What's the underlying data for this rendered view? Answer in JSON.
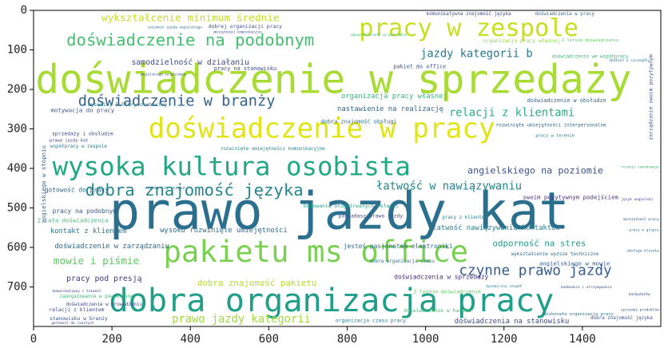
{
  "chart_data": {
    "type": "wordcloud",
    "title": "",
    "xlabel": "",
    "ylabel": "",
    "xlim": [
      0,
      1600
    ],
    "ylim": [
      800,
      0
    ],
    "grid": false,
    "x_ticks": [
      0,
      200,
      400,
      600,
      800,
      1000,
      1200,
      1400
    ],
    "y_ticks": [
      0,
      100,
      200,
      300,
      400,
      500,
      600,
      700
    ],
    "words": [
      {
        "text": "prawo jazdy kat",
        "x": 780,
        "y": 510,
        "size": 130,
        "color": "#2a6f8e"
      },
      {
        "text": "doświadczenie w sprzedaży",
        "x": 765,
        "y": 175,
        "size": 112,
        "color": "#a8db34"
      },
      {
        "text": "dobra organizacja pracy",
        "x": 760,
        "y": 735,
        "size": 82,
        "color": "#1f9e89"
      },
      {
        "text": "pakietu ms office",
        "x": 720,
        "y": 610,
        "size": 76,
        "color": "#7ad151"
      },
      {
        "text": "doświadczenie w pracy",
        "x": 735,
        "y": 300,
        "size": 70,
        "color": "#e2e41a"
      },
      {
        "text": "wysoka kultura osobista",
        "x": 505,
        "y": 395,
        "size": 66,
        "color": "#22a884"
      },
      {
        "text": "pracy w zespole",
        "x": 1110,
        "y": 45,
        "size": 62,
        "color": "#c5e021"
      },
      {
        "text": "doświadczenie na podobnym",
        "x": 400,
        "y": 75,
        "size": 42,
        "color": "#44bf70"
      },
      {
        "text": "dobra znajomość języka",
        "x": 410,
        "y": 455,
        "size": 42,
        "color": "#25858e"
      },
      {
        "text": "doświadczenie w branży",
        "x": 365,
        "y": 230,
        "size": 38,
        "color": "#33638d"
      },
      {
        "text": "czynne prawo jazdy",
        "x": 1280,
        "y": 660,
        "size": 36,
        "color": "#365c8d"
      },
      {
        "text": "relacji z klientami",
        "x": 1220,
        "y": 260,
        "size": 28,
        "color": "#29af7f"
      },
      {
        "text": "jazdy kategorii b",
        "x": 1130,
        "y": 110,
        "size": 28,
        "color": "#2a788e"
      },
      {
        "text": "łatwość w nawiązywaniu",
        "x": 1060,
        "y": 445,
        "size": 28,
        "color": "#26828e"
      },
      {
        "text": "prawo jazdy kategorii",
        "x": 530,
        "y": 785,
        "size": 28,
        "color": "#a0da39"
      },
      {
        "text": "wykształcenie minimum średnie",
        "x": 400,
        "y": 20,
        "size": 26,
        "color": "#c0df25"
      },
      {
        "text": "mowie i piśmie",
        "x": 160,
        "y": 635,
        "size": 26,
        "color": "#5ec962"
      },
      {
        "text": "angielskiego na poziomie",
        "x": 1280,
        "y": 405,
        "size": 24,
        "color": "#3b528b"
      },
      {
        "text": "odporność na stres",
        "x": 1290,
        "y": 590,
        "size": 22,
        "color": "#1f9a8a"
      },
      {
        "text": "dobra znajomość pakietu",
        "x": 570,
        "y": 690,
        "size": 22,
        "color": "#b5de2b"
      },
      {
        "text": "pracy pod presją",
        "x": 180,
        "y": 680,
        "size": 20,
        "color": "#443983"
      },
      {
        "text": "samodzielność w działaniu",
        "x": 400,
        "y": 132,
        "size": 20,
        "color": "#3e4989"
      },
      {
        "text": "organizacja pracy własnej",
        "x": 920,
        "y": 218,
        "size": 18,
        "color": "#35b779"
      },
      {
        "text": "nastawienie na realizację",
        "x": 910,
        "y": 250,
        "size": 18,
        "color": "#33638d"
      },
      {
        "text": "kontakt z klientem",
        "x": 140,
        "y": 560,
        "size": 18,
        "color": "#2c728e"
      },
      {
        "text": "doświadczenie w zarządzaniu",
        "x": 200,
        "y": 598,
        "size": 18,
        "color": "#31688e"
      },
      {
        "text": "łatwość nawiązywania kontaktów",
        "x": 1180,
        "y": 552,
        "size": 18,
        "color": "#287d8e"
      },
      {
        "text": "wysoko rozwinięte umiejętności",
        "x": 485,
        "y": 558,
        "size": 18,
        "color": "#2e6e8e"
      },
      {
        "text": "jesteś pasjonatem elektroniki",
        "x": 930,
        "y": 597,
        "size": 16,
        "color": "#2f6c8e"
      },
      {
        "text": "doświadczenia w sprzedaży",
        "x": 1040,
        "y": 675,
        "size": 16,
        "color": "#472d7b"
      },
      {
        "text": "doświadczenia na stanowisku",
        "x": 1220,
        "y": 795,
        "size": 18,
        "color": "#3f4889"
      },
      {
        "text": "gotowość do pracy",
        "x": 110,
        "y": 455,
        "size": 16,
        "color": "#2f6b8e"
      },
      {
        "text": "pracy na podobnym",
        "x": 130,
        "y": 508,
        "size": 16,
        "color": "#39568c"
      },
      {
        "text": "2 lata doświadczenia",
        "x": 100,
        "y": 531,
        "size": 15,
        "color": "#3aba76"
      },
      {
        "text": "motywacja do pracy",
        "x": 125,
        "y": 253,
        "size": 15,
        "color": "#3b528b"
      },
      {
        "text": "angielskiego w stopniu",
        "x": 25,
        "y": 440,
        "size": 15,
        "color": "#33638d",
        "rotate": -90
      },
      {
        "text": "dobra znajomość obsługi",
        "x": 830,
        "y": 282,
        "size": 14,
        "color": "#2c728e"
      },
      {
        "text": "dobrej organizacji pracy",
        "x": 540,
        "y": 40,
        "size": 13,
        "color": "#3e4989"
      },
      {
        "text": "organizacja pracy własnej",
        "x": 1245,
        "y": 77,
        "size": 13,
        "color": "#8fd744"
      },
      {
        "text": "pracy na stanowisku",
        "x": 540,
        "y": 147,
        "size": 14,
        "color": "#3e4989"
      },
      {
        "text": "pakiet ms office",
        "x": 985,
        "y": 142,
        "size": 14,
        "color": "#3b528b"
      },
      {
        "text": "doświadczenie w obsłudze",
        "x": 1360,
        "y": 228,
        "size": 14,
        "color": "#33638d"
      },
      {
        "text": "komunikatywna znajomość języka",
        "x": 1110,
        "y": 10,
        "size": 12,
        "color": "#3e4989"
      },
      {
        "text": "doświadczenia w pracy",
        "x": 1355,
        "y": 10,
        "size": 12,
        "color": "#31688e"
      },
      {
        "text": "doświadczenie we współpracy",
        "x": 1420,
        "y": 118,
        "size": 12,
        "color": "#3bbb75"
      },
      {
        "text": "wysokiej kultury osobistej",
        "x": 240,
        "y": 238,
        "size": 13,
        "color": "#26828e"
      },
      {
        "text": "sprzedaży i obsłudze",
        "x": 125,
        "y": 312,
        "size": 13,
        "color": "#3e4989"
      },
      {
        "text": "współpracy w zespole",
        "x": 115,
        "y": 345,
        "size": 12,
        "color": "#2a788e"
      },
      {
        "text": "rozwinięte umiejętności komunikacyjne",
        "x": 610,
        "y": 352,
        "size": 12,
        "color": "#25858e"
      },
      {
        "text": "budowania długotrwałych relacji",
        "x": 810,
        "y": 495,
        "size": 13,
        "color": "#1f9e89"
      },
      {
        "text": "posiadasz prawo jazdy",
        "x": 860,
        "y": 520,
        "size": 13,
        "color": "#433e85"
      },
      {
        "text": "swoim pozytywnym podejściem",
        "x": 1370,
        "y": 473,
        "size": 15,
        "color": "#472d7b"
      },
      {
        "text": "pracy z klientem",
        "x": 1100,
        "y": 525,
        "size": 12,
        "color": "#287d8e"
      },
      {
        "text": "angielskiego w mowie",
        "x": 1380,
        "y": 640,
        "size": 15,
        "color": "#365c8d"
      },
      {
        "text": "doświadczenie w prowadzeniu",
        "x": 180,
        "y": 745,
        "size": 12,
        "color": "#3e4989"
      },
      {
        "text": "relacji z klientem",
        "x": 110,
        "y": 758,
        "size": 13,
        "color": "#3e4989"
      },
      {
        "text": "stanowisku w branży",
        "x": 115,
        "y": 780,
        "size": 13,
        "color": "#3b528b"
      },
      {
        "text": "organizacja czasu pracy",
        "x": 860,
        "y": 785,
        "size": 13,
        "color": "#2a788e"
      },
      {
        "text": "doświadczenie w handlu",
        "x": 1030,
        "y": 760,
        "size": 13,
        "color": "#44bf70"
      },
      {
        "text": "2 letnie doświadczenie",
        "x": 1055,
        "y": 712,
        "size": 13,
        "color": "#5ec962"
      },
      {
        "text": "dobra organizacja czasu",
        "x": 940,
        "y": 636,
        "size": 12,
        "color": "#2c728e"
      },
      {
        "text": "wykształcenie wyższe techniczne",
        "x": 1330,
        "y": 618,
        "size": 12,
        "color": "#31688e"
      },
      {
        "text": "rozwinięte umiejętności interpersonalne",
        "x": 1320,
        "y": 292,
        "size": 12,
        "color": "#33638d"
      },
      {
        "text": "zaangażowanie w powierzone",
        "x": 160,
        "y": 725,
        "size": 12,
        "color": "#3aba76"
      },
      {
        "text": "dobra znajomość języka",
        "x": 1500,
        "y": 780,
        "size": 12,
        "color": "#3b528b"
      },
      {
        "text": "doskonała organizacja pracy",
        "x": 1390,
        "y": 770,
        "size": 11,
        "color": "#2c728e"
      },
      {
        "text": "2 letnie doświadczenie",
        "x": 1420,
        "y": 77,
        "size": 11,
        "color": "#5ec962"
      },
      {
        "text": "zarządzanie swoim pozytywnym",
        "x": 1575,
        "y": 220,
        "size": 13,
        "color": "#3b528b",
        "rotate": -90
      },
      {
        "text": "pracy w terenie",
        "x": 1330,
        "y": 318,
        "size": 11,
        "color": "#2a788e"
      },
      {
        "text": "prawa jazdy kat",
        "x": 90,
        "y": 330,
        "size": 11,
        "color": "#3e4989"
      },
      {
        "text": "odpowiedzialność za powierzone",
        "x": 880,
        "y": 62,
        "size": 8,
        "color": "#3bbb75"
      },
      {
        "text": "umiejętności komunikacyjne",
        "x": 520,
        "y": 55,
        "size": 8,
        "color": "#3e4989"
      },
      {
        "text": "znajomość języka angielskiego",
        "x": 360,
        "y": 42,
        "size": 8,
        "color": "#2c728e"
      },
      {
        "text": "angielskiego na poziomie",
        "x": 330,
        "y": 162,
        "size": 8,
        "color": "#3b528b"
      },
      {
        "text": "komunikatywny i łatwość",
        "x": 110,
        "y": 712,
        "size": 9,
        "color": "#3e4989"
      },
      {
        "text": "gotowość do częstych",
        "x": 100,
        "y": 798,
        "size": 9,
        "color": "#3e4989"
      },
      {
        "text": "szybko się uczysz",
        "x": 335,
        "y": 450,
        "size": 10,
        "color": "#2c728e"
      },
      {
        "text": "budowanie i utrzymywanie",
        "x": 1410,
        "y": 702,
        "size": 9,
        "color": "#3b528b"
      },
      {
        "text": "dynamiczny zespół",
        "x": 1200,
        "y": 700,
        "size": 9,
        "color": "#2a788e"
      },
      {
        "text": "rozwoju zawodowego",
        "x": 1560,
        "y": 398,
        "size": 9,
        "color": "#3bbb75"
      },
      {
        "text": "dbałość o szczegóły",
        "x": 1520,
        "y": 128,
        "size": 9,
        "color": "#2a788e"
      },
      {
        "text": "język angielski",
        "x": 1540,
        "y": 480,
        "size": 9,
        "color": "#3e4989"
      },
      {
        "text": "umiejętność pracy",
        "x": 1560,
        "y": 530,
        "size": 9,
        "color": "#365c8d"
      },
      {
        "text": "pracy w grupie",
        "x": 1560,
        "y": 558,
        "size": 9,
        "color": "#2c728e"
      },
      {
        "text": "kandydatów",
        "x": 1545,
        "y": 720,
        "size": 9,
        "color": "#3e4989"
      },
      {
        "text": "sprzedaż produktów",
        "x": 1560,
        "y": 760,
        "size": 9,
        "color": "#3b528b"
      },
      {
        "text": "obsługa klienta",
        "x": 1560,
        "y": 610,
        "size": 9,
        "color": "#31688e"
      }
    ]
  }
}
